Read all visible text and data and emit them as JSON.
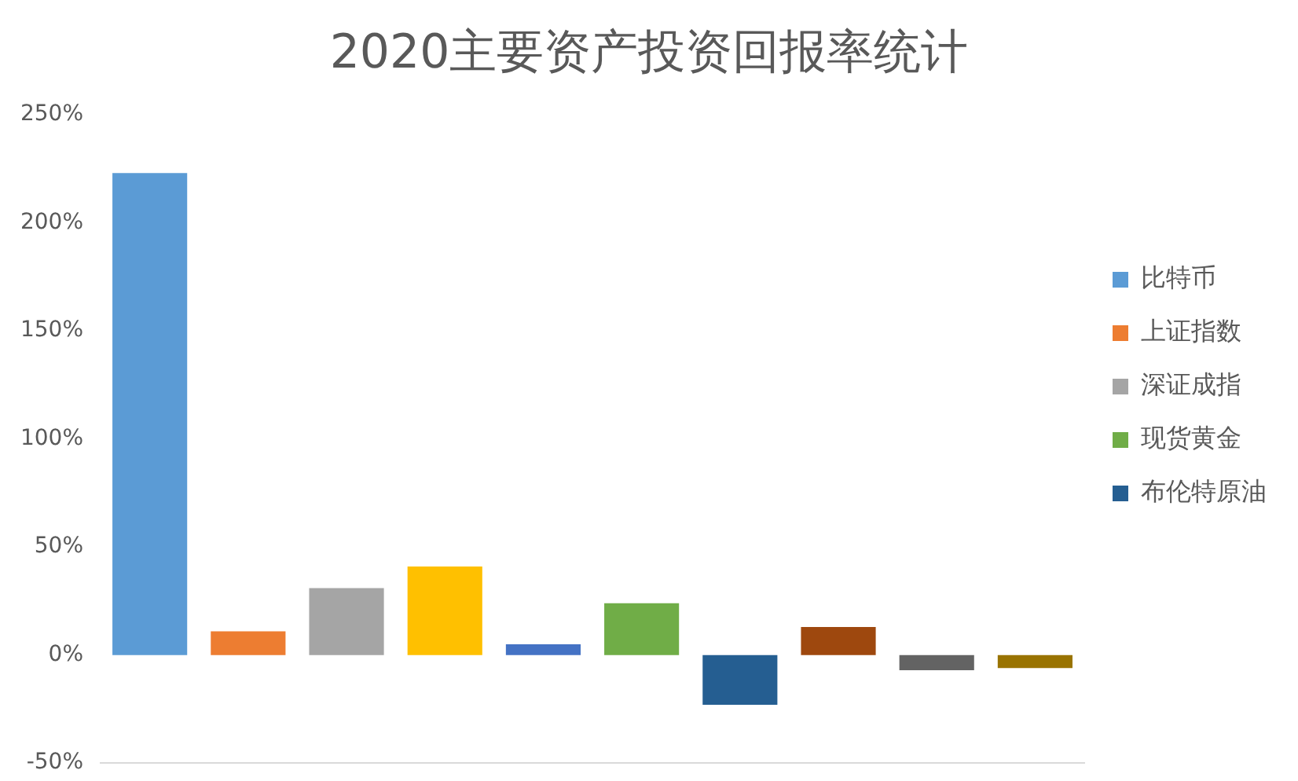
{
  "chart_data": {
    "type": "bar",
    "title": "2020主要资产投资回报率统计",
    "categories": [
      null,
      null,
      null,
      null,
      null,
      null,
      null,
      null,
      null,
      null
    ],
    "stacked": true,
    "grid": false,
    "legend": "right",
    "tick_labels": "y",
    "ylim": [
      -50,
      250
    ],
    "yticks": [
      {
        "value": -50,
        "label": "-50%"
      },
      {
        "value": 0,
        "label": "0%"
      },
      {
        "value": 50,
        "label": "50%"
      },
      {
        "value": 100,
        "label": "100%"
      },
      {
        "value": 150,
        "label": "150%"
      },
      {
        "value": 200,
        "label": "200%"
      },
      {
        "value": 250,
        "label": "250%"
      }
    ],
    "series": [
      {
        "name": "比特币",
        "color": "#5b9bd5",
        "values": [
          223,
          null,
          null,
          null,
          null,
          null,
          null,
          null,
          null,
          null
        ]
      },
      {
        "name": "上证指数",
        "color": "#ed7d31",
        "values": [
          null,
          11,
          null,
          null,
          null,
          null,
          null,
          null,
          null,
          null
        ]
      },
      {
        "name": "深证成指",
        "color": "#a5a5a5",
        "values": [
          null,
          null,
          31,
          null,
          null,
          null,
          null,
          null,
          null,
          null
        ]
      },
      {
        "color": "#ffc000",
        "values": [
          null,
          null,
          null,
          41,
          null,
          null,
          null,
          null,
          null,
          null
        ]
      },
      {
        "color": "#4472c4",
        "values": [
          null,
          null,
          null,
          null,
          5,
          null,
          null,
          null,
          null,
          null
        ]
      },
      {
        "name": "现货黄金",
        "color": "#70ad47",
        "values": [
          null,
          null,
          null,
          null,
          null,
          24,
          null,
          null,
          null,
          null
        ]
      },
      {
        "name": "布伦特原油",
        "color": "#255e91",
        "values": [
          null,
          null,
          null,
          null,
          null,
          null,
          -23,
          null,
          null,
          null
        ]
      },
      {
        "color": "#9e480e",
        "values": [
          null,
          null,
          null,
          null,
          null,
          null,
          null,
          13,
          null,
          null
        ]
      },
      {
        "color": "#636363",
        "values": [
          null,
          null,
          null,
          null,
          null,
          null,
          null,
          null,
          -7,
          null
        ]
      },
      {
        "color": "#997300",
        "values": [
          null,
          null,
          null,
          null,
          null,
          null,
          null,
          null,
          null,
          -6
        ]
      }
    ]
  }
}
